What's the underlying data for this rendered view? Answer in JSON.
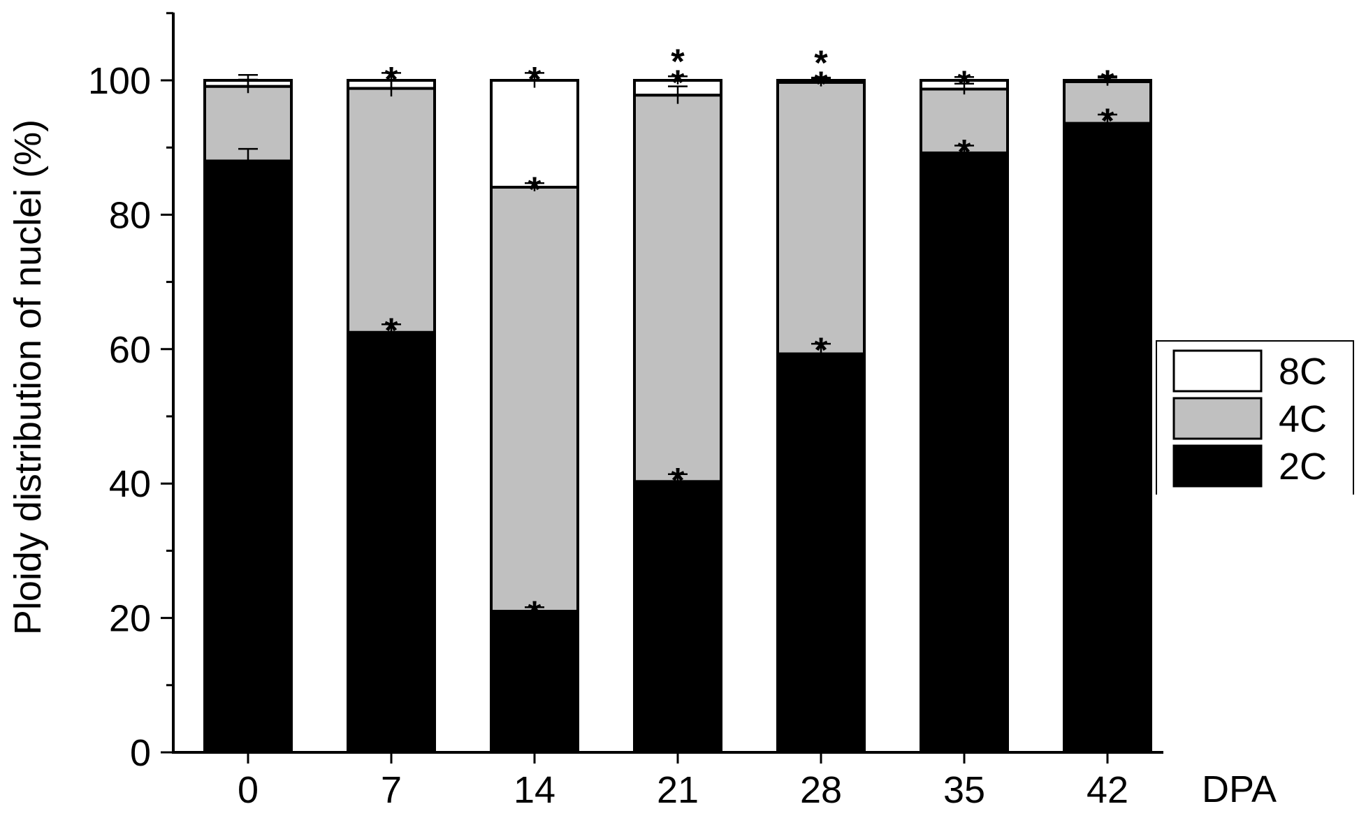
{
  "chart_data": {
    "type": "bar",
    "stacked": true,
    "title": "",
    "xlabel": "DPA",
    "ylabel": "Ploidy distribution of nuclei (%)",
    "categories": [
      "0",
      "7",
      "14",
      "21",
      "28",
      "35",
      "42"
    ],
    "ylim": [
      0,
      110
    ],
    "yticks": [
      0,
      20,
      40,
      60,
      80,
      100
    ],
    "series": [
      {
        "name": "2C",
        "color": "#000000",
        "values": [
          88,
          62.5,
          21,
          40.3,
          59.3,
          89.2,
          93.6
        ]
      },
      {
        "name": "4C",
        "color": "#c0c0c0",
        "values": [
          11.1,
          36.3,
          63.1,
          57.5,
          40.4,
          9.5,
          6.2
        ]
      },
      {
        "name": "8C",
        "color": "#ffffff",
        "values": [
          0.9,
          1.2,
          15.9,
          2.2,
          0.3,
          1.3,
          0.2
        ]
      }
    ],
    "error_bars": {
      "2C": [
        1.8,
        1.2,
        0.6,
        1.1,
        1.5,
        1.1,
        1.3
      ],
      "4C": [
        1.0,
        1.2,
        0.6,
        1.3,
        0.6,
        0.8,
        0.6
      ],
      "8C": [
        0.8,
        1.1,
        1.1,
        0.6,
        0.4,
        0.5,
        0.6
      ]
    },
    "significance_markers": [
      {
        "category": "7",
        "series": "2C",
        "label": "*"
      },
      {
        "category": "7",
        "series": "8C",
        "label": "*"
      },
      {
        "category": "14",
        "series": "2C",
        "label": "*"
      },
      {
        "category": "14",
        "series": "4C",
        "label": "*"
      },
      {
        "category": "14",
        "series": "8C",
        "label": "*"
      },
      {
        "category": "21",
        "series": "2C",
        "label": "*"
      },
      {
        "category": "21",
        "series": "8C",
        "label": "*"
      },
      {
        "category": "21",
        "series": "8C",
        "label": "*"
      },
      {
        "category": "28",
        "series": "2C",
        "label": "*"
      },
      {
        "category": "28",
        "series": "8C",
        "label": "*"
      },
      {
        "category": "28",
        "series": "8C",
        "label": "*"
      },
      {
        "category": "35",
        "series": "2C",
        "label": "*"
      },
      {
        "category": "35",
        "series": "8C",
        "label": "*"
      },
      {
        "category": "42",
        "series": "2C",
        "label": "*"
      },
      {
        "category": "42",
        "series": "8C",
        "label": "*"
      }
    ],
    "legend": {
      "position": "right",
      "entries": [
        "8C",
        "4C",
        "2C"
      ]
    },
    "grid": false
  }
}
